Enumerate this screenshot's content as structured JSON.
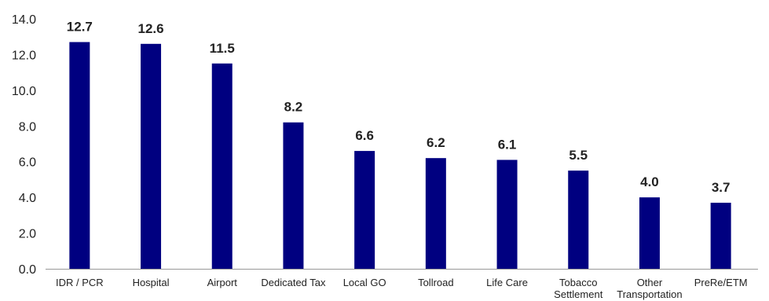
{
  "chart_data": {
    "type": "bar",
    "title": "",
    "xlabel": "",
    "ylabel": "",
    "categories": [
      [
        "IDR / PCR"
      ],
      [
        "Hospital"
      ],
      [
        "Airport"
      ],
      [
        "Dedicated Tax"
      ],
      [
        "Local GO"
      ],
      [
        "Tollroad"
      ],
      [
        "Life Care"
      ],
      [
        "Tobacco",
        "Settlement"
      ],
      [
        "Other",
        "Transportation"
      ],
      [
        "PreRe/ETM"
      ]
    ],
    "values": [
      12.7,
      12.6,
      11.5,
      8.2,
      6.6,
      6.2,
      6.1,
      5.5,
      4.0,
      3.7
    ],
    "data_labels": [
      "12.7",
      "12.6",
      "11.5",
      "8.2",
      "6.6",
      "6.2",
      "6.1",
      "5.5",
      "4.0",
      "3.7"
    ],
    "ylim": [
      0,
      14
    ],
    "yticks": [
      0,
      2,
      4,
      6,
      8,
      10,
      12,
      14
    ],
    "ytick_labels": [
      "0.0",
      "2.0",
      "4.0",
      "6.0",
      "8.0",
      "10.0",
      "12.0",
      "14.0"
    ],
    "grid": false,
    "legend": "none",
    "bar_color": "#000080",
    "axis_color": "#999999"
  }
}
